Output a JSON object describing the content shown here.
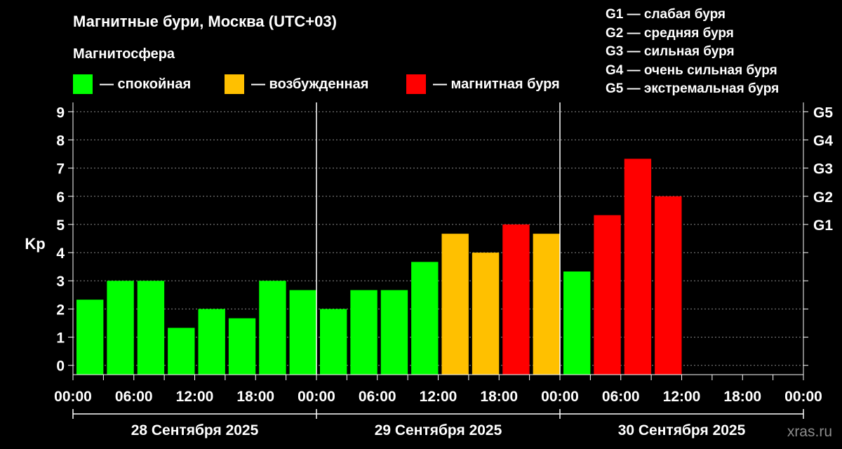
{
  "header": {
    "title": "Магнитные бури, Москва (UTC+03)",
    "subtitle": "Магнитосфера"
  },
  "legend": [
    {
      "label": "— спокойная",
      "color": "#00ff00"
    },
    {
      "label": "— возбужденная",
      "color": "#ffc000"
    },
    {
      "label": "— магнитная буря",
      "color": "#ff0000"
    }
  ],
  "storm_levels": [
    {
      "label": "G1 — слабая буря"
    },
    {
      "label": "G2 — средняя буря"
    },
    {
      "label": "G3 — сильная буря"
    },
    {
      "label": "G4 — очень сильная буря"
    },
    {
      "label": "G5 — экстремальная буря"
    }
  ],
  "watermark": "xras.ru",
  "chart_data": {
    "type": "bar",
    "ylabel": "Kp",
    "ylim": [
      -0.33,
      9.33
    ],
    "y_ticks": [
      "0",
      "1",
      "2",
      "3",
      "4",
      "5",
      "6",
      "7",
      "8",
      "9"
    ],
    "right_ticks": [
      {
        "value": 5,
        "label": "G1"
      },
      {
        "value": 6,
        "label": "G2"
      },
      {
        "value": 7,
        "label": "G3"
      },
      {
        "value": 8,
        "label": "G4"
      },
      {
        "value": 9,
        "label": "G5"
      }
    ],
    "grid": true,
    "x_tick_labels": [
      "00:00",
      "06:00",
      "12:00",
      "18:00",
      "00:00",
      "06:00",
      "12:00",
      "18:00",
      "00:00",
      "06:00",
      "12:00",
      "18:00",
      "00:00"
    ],
    "days": [
      "28 Сентября 2025",
      "29 Сентября 2025",
      "30 Сентября 2025"
    ],
    "colors": {
      "quiet": "#00ff00",
      "active": "#ffc000",
      "storm": "#ff0000"
    },
    "bars": [
      {
        "day": 0,
        "slot": 0,
        "value": 2.33,
        "level": "quiet"
      },
      {
        "day": 0,
        "slot": 1,
        "value": 3.0,
        "level": "quiet"
      },
      {
        "day": 0,
        "slot": 2,
        "value": 3.0,
        "level": "quiet"
      },
      {
        "day": 0,
        "slot": 3,
        "value": 1.33,
        "level": "quiet"
      },
      {
        "day": 0,
        "slot": 4,
        "value": 2.0,
        "level": "quiet"
      },
      {
        "day": 0,
        "slot": 5,
        "value": 1.67,
        "level": "quiet"
      },
      {
        "day": 0,
        "slot": 6,
        "value": 3.0,
        "level": "quiet"
      },
      {
        "day": 0,
        "slot": 7,
        "value": 2.67,
        "level": "quiet"
      },
      {
        "day": 1,
        "slot": 0,
        "value": 2.0,
        "level": "quiet"
      },
      {
        "day": 1,
        "slot": 1,
        "value": 2.67,
        "level": "quiet"
      },
      {
        "day": 1,
        "slot": 2,
        "value": 2.67,
        "level": "quiet"
      },
      {
        "day": 1,
        "slot": 3,
        "value": 3.67,
        "level": "quiet"
      },
      {
        "day": 1,
        "slot": 4,
        "value": 4.67,
        "level": "active"
      },
      {
        "day": 1,
        "slot": 5,
        "value": 4.0,
        "level": "active"
      },
      {
        "day": 1,
        "slot": 6,
        "value": 5.0,
        "level": "storm"
      },
      {
        "day": 1,
        "slot": 7,
        "value": 4.67,
        "level": "active"
      },
      {
        "day": 2,
        "slot": 0,
        "value": 3.33,
        "level": "quiet"
      },
      {
        "day": 2,
        "slot": 1,
        "value": 5.33,
        "level": "storm"
      },
      {
        "day": 2,
        "slot": 2,
        "value": 7.33,
        "level": "storm"
      },
      {
        "day": 2,
        "slot": 3,
        "value": 6.0,
        "level": "storm"
      }
    ]
  }
}
